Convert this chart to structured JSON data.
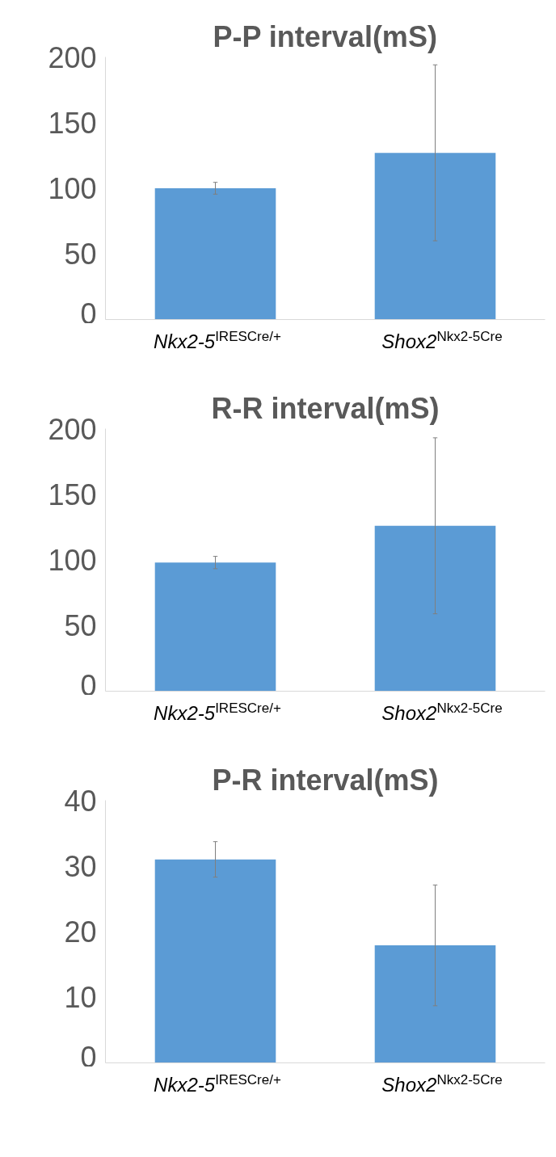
{
  "chart_data": [
    {
      "type": "bar",
      "title": "P-P interval(mS)",
      "categories": [
        "Nkx2-5$^{IRESCre/+}$",
        "Shox2$^{Nkx2-5Cre}$"
      ],
      "values": [
        100,
        127
      ],
      "errors": [
        4.5,
        67
      ],
      "color": "#5b9bd5",
      "ylim": [
        0,
        200
      ],
      "yticks": [
        0,
        50,
        100,
        150,
        200
      ],
      "grid": false
    },
    {
      "type": "bar",
      "title": "R-R interval(mS)",
      "categories": [
        "Nkx2-5$^{IRESCre/+}$",
        "Shox2$^{Nkx2-5Cre}$"
      ],
      "values": [
        98,
        126
      ],
      "errors": [
        4.7,
        67
      ],
      "color": "#5b9bd5",
      "ylim": [
        0,
        200
      ],
      "yticks": [
        0,
        50,
        100,
        150,
        200
      ],
      "grid": false
    },
    {
      "type": "bar",
      "title": "P-R interval(mS)",
      "categories": [
        "Nkx2-5$^{IRESCre/+}$",
        "Shox2$^{Nkx2-5Cre}$"
      ],
      "values": [
        31,
        17.9
      ],
      "errors": [
        2.7,
        9.2
      ],
      "color": "#5b9bd5",
      "ylim": [
        0,
        40
      ],
      "yticks": [
        0,
        10,
        20,
        30,
        40
      ],
      "grid": false
    }
  ]
}
